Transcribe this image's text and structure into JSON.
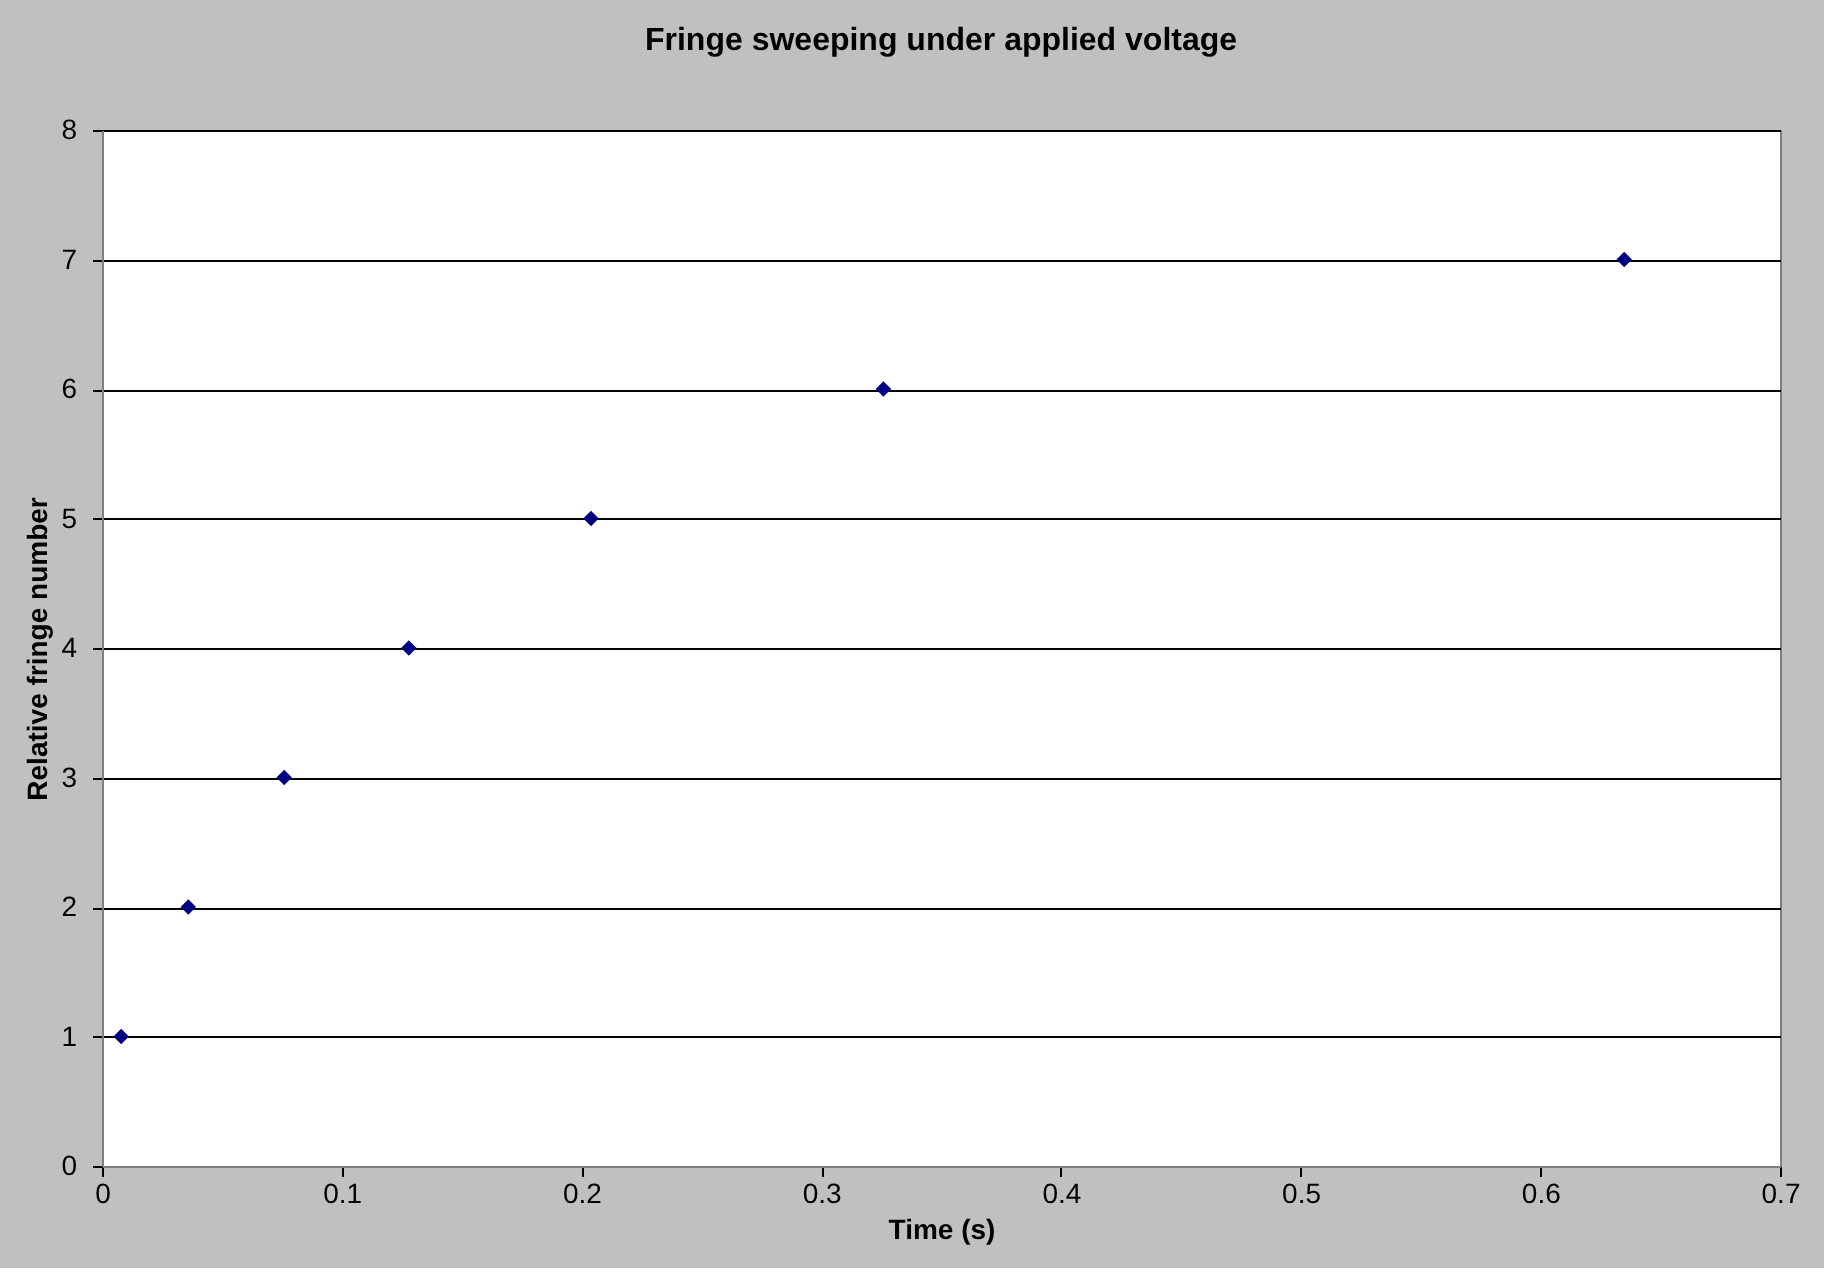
{
  "chart_data": {
    "type": "scatter",
    "title": "Fringe sweeping under applied voltage",
    "xlabel": "Time (s)",
    "ylabel": "Relative fringe number",
    "x": [
      0.008,
      0.036,
      0.076,
      0.128,
      0.204,
      0.326,
      0.635
    ],
    "series": [
      {
        "color": "#000080",
        "values": [
          1,
          2,
          3,
          4,
          5,
          6,
          7
        ]
      }
    ],
    "xlim": [
      0,
      0.7
    ],
    "xticks": [
      0,
      0.1,
      0.2,
      0.3,
      0.4,
      0.5,
      0.6,
      0.7
    ],
    "ylim": [
      0,
      8
    ],
    "yticks": [
      0,
      1,
      2,
      3,
      4,
      5,
      6,
      7,
      8
    ],
    "grid": "y",
    "legend": false,
    "marker": "diamond"
  }
}
